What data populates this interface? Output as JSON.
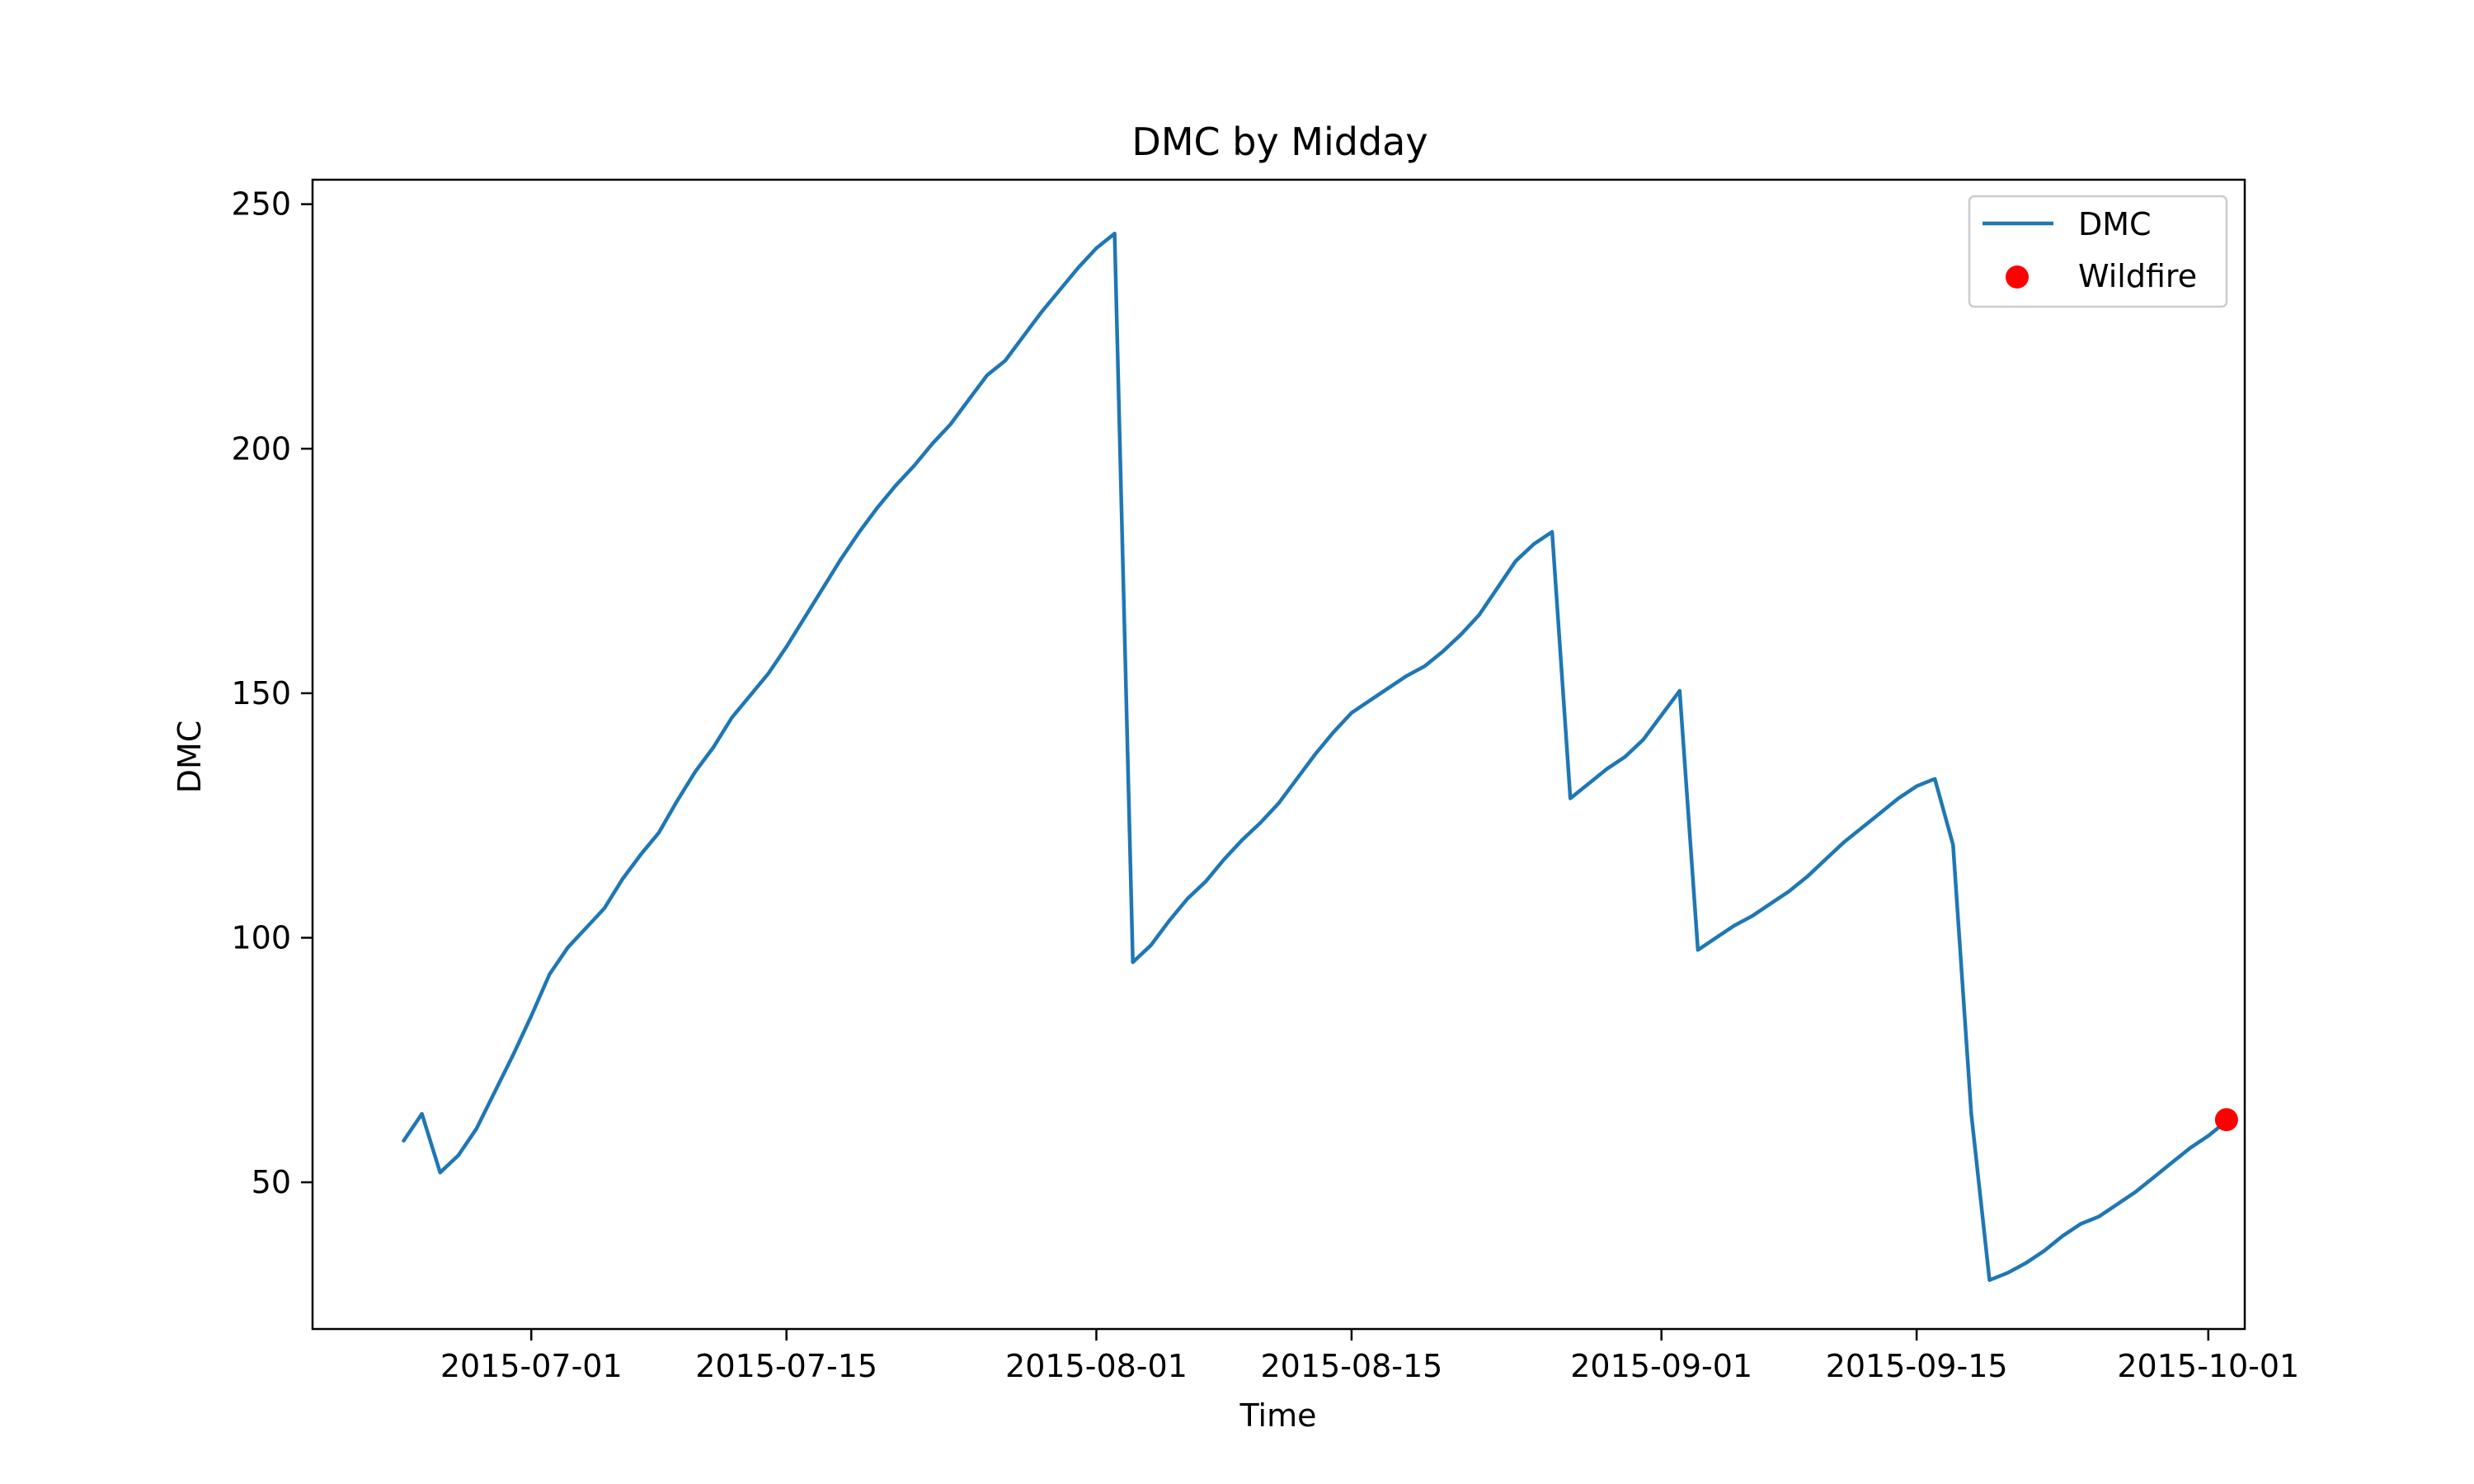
{
  "chart_data": {
    "type": "line",
    "title": "DMC by Midday",
    "xlabel": "Time",
    "ylabel": "DMC",
    "ylim": [
      20,
      255
    ],
    "xlim": [
      "2015-06-19",
      "2015-10-03"
    ],
    "x_ticks": [
      "2015-07-01",
      "2015-07-15",
      "2015-08-01",
      "2015-08-15",
      "2015-09-01",
      "2015-09-15",
      "2015-10-01"
    ],
    "y_ticks": [
      50,
      100,
      150,
      200,
      250
    ],
    "grid": false,
    "legend_position": "top-right",
    "series": [
      {
        "name": "DMC",
        "color": "#1f77b4",
        "points": [
          [
            "2015-06-24",
            58.5
          ],
          [
            "2015-06-25",
            64
          ],
          [
            "2015-06-26",
            52
          ],
          [
            "2015-06-27",
            55.5
          ],
          [
            "2015-06-28",
            61
          ],
          [
            "2015-06-29",
            68.5
          ],
          [
            "2015-06-30",
            76
          ],
          [
            "2015-07-01",
            84
          ],
          [
            "2015-07-02",
            92.5
          ],
          [
            "2015-07-03",
            98
          ],
          [
            "2015-07-04",
            102
          ],
          [
            "2015-07-05",
            106
          ],
          [
            "2015-07-06",
            112
          ],
          [
            "2015-07-07",
            117
          ],
          [
            "2015-07-08",
            121.5
          ],
          [
            "2015-07-09",
            128
          ],
          [
            "2015-07-10",
            134
          ],
          [
            "2015-07-11",
            139
          ],
          [
            "2015-07-12",
            145
          ],
          [
            "2015-07-13",
            149.5
          ],
          [
            "2015-07-14",
            154
          ],
          [
            "2015-07-15",
            159.5
          ],
          [
            "2015-07-16",
            165.5
          ],
          [
            "2015-07-17",
            171.5
          ],
          [
            "2015-07-18",
            177.5
          ],
          [
            "2015-07-19",
            183
          ],
          [
            "2015-07-20",
            188
          ],
          [
            "2015-07-21",
            192.5
          ],
          [
            "2015-07-22",
            196.5
          ],
          [
            "2015-07-23",
            201
          ],
          [
            "2015-07-24",
            205
          ],
          [
            "2015-07-25",
            210
          ],
          [
            "2015-07-26",
            215
          ],
          [
            "2015-07-27",
            218
          ],
          [
            "2015-07-28",
            223
          ],
          [
            "2015-07-29",
            228
          ],
          [
            "2015-07-30",
            232.5
          ],
          [
            "2015-07-31",
            237
          ],
          [
            "2015-08-01",
            241
          ],
          [
            "2015-08-02",
            244
          ],
          [
            "2015-08-03",
            95
          ],
          [
            "2015-08-04",
            98.5
          ],
          [
            "2015-08-05",
            103.5
          ],
          [
            "2015-08-06",
            108
          ],
          [
            "2015-08-07",
            111.5
          ],
          [
            "2015-08-08",
            116
          ],
          [
            "2015-08-09",
            120
          ],
          [
            "2015-08-10",
            123.5
          ],
          [
            "2015-08-11",
            127.5
          ],
          [
            "2015-08-12",
            132.5
          ],
          [
            "2015-08-13",
            137.5
          ],
          [
            "2015-08-14",
            142
          ],
          [
            "2015-08-15",
            146
          ],
          [
            "2015-08-16",
            148.5
          ],
          [
            "2015-08-17",
            151
          ],
          [
            "2015-08-18",
            153.5
          ],
          [
            "2015-08-19",
            155.5
          ],
          [
            "2015-08-20",
            158.5
          ],
          [
            "2015-08-21",
            162
          ],
          [
            "2015-08-22",
            166
          ],
          [
            "2015-08-23",
            171.5
          ],
          [
            "2015-08-24",
            177
          ],
          [
            "2015-08-25",
            180.5
          ],
          [
            "2015-08-26",
            183
          ],
          [
            "2015-08-27",
            128.5
          ],
          [
            "2015-08-28",
            131.5
          ],
          [
            "2015-08-29",
            134.5
          ],
          [
            "2015-08-30",
            137
          ],
          [
            "2015-08-31",
            140.5
          ],
          [
            "2015-09-01",
            145.5
          ],
          [
            "2015-09-02",
            150.5
          ],
          [
            "2015-09-03",
            97.5
          ],
          [
            "2015-09-04",
            100
          ],
          [
            "2015-09-05",
            102.5
          ],
          [
            "2015-09-06",
            104.5
          ],
          [
            "2015-09-07",
            107
          ],
          [
            "2015-09-08",
            109.5
          ],
          [
            "2015-09-09",
            112.5
          ],
          [
            "2015-09-10",
            116
          ],
          [
            "2015-09-11",
            119.5
          ],
          [
            "2015-09-12",
            122.5
          ],
          [
            "2015-09-13",
            125.5
          ],
          [
            "2015-09-14",
            128.5
          ],
          [
            "2015-09-15",
            131
          ],
          [
            "2015-09-16",
            132.5
          ],
          [
            "2015-09-17",
            119
          ],
          [
            "2015-09-18",
            64
          ],
          [
            "2015-09-19",
            30
          ],
          [
            "2015-09-20",
            31.5
          ],
          [
            "2015-09-21",
            33.5
          ],
          [
            "2015-09-22",
            36
          ],
          [
            "2015-09-23",
            39
          ],
          [
            "2015-09-24",
            41.5
          ],
          [
            "2015-09-25",
            43
          ],
          [
            "2015-09-26",
            45.5
          ],
          [
            "2015-09-27",
            48
          ],
          [
            "2015-09-28",
            51
          ],
          [
            "2015-09-29",
            54
          ],
          [
            "2015-09-30",
            57
          ],
          [
            "2015-10-01",
            59.5
          ],
          [
            "2015-10-02",
            62.5
          ]
        ]
      },
      {
        "name": "Wildfire",
        "type": "scatter",
        "color": "#ff0000",
        "points": [
          [
            "2015-10-02",
            62.8
          ]
        ]
      }
    ]
  }
}
